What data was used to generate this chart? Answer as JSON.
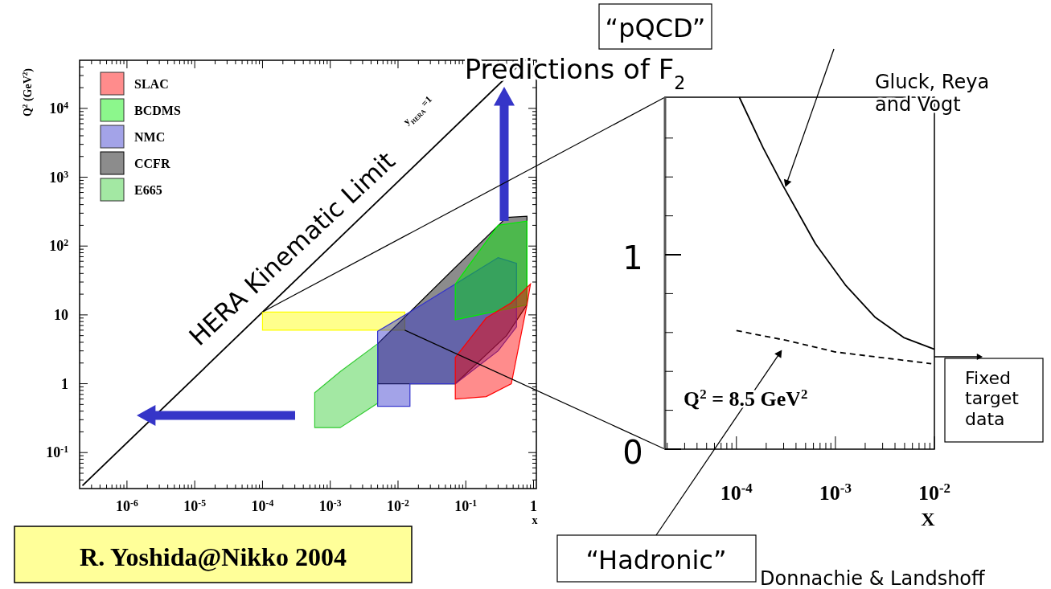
{
  "chart_data": [
    {
      "type": "area",
      "xlabel": "x",
      "ylabel": "Q$^{2}$ (GeV$^{2}$)",
      "log": "xy",
      "legend": "top left",
      "xlim": [
        2e-07,
        1.1
      ],
      "ylim": [
        0.03,
        50000
      ],
      "xticks": [
        {
          "value": 1e-06,
          "label": "10$^{-6}$"
        },
        {
          "value": 1e-05,
          "label": "10$^{-5}$"
        },
        {
          "value": 0.0001,
          "label": "10$^{-4}$"
        },
        {
          "value": 0.001,
          "label": "10$^{-3}$"
        },
        {
          "value": 0.01,
          "label": "10$^{-2}$"
        },
        {
          "value": 0.1,
          "label": "10$^{-1}$"
        },
        1
      ],
      "yticks": [
        {
          "value": 0.1,
          "label": "10$^{-1}$"
        },
        1,
        10,
        {
          "value": 100,
          "label": "10$^{2}$"
        },
        {
          "value": 1000,
          "label": "10$^{3}$"
        },
        {
          "value": 10000,
          "label": "10$^{4}$"
        }
      ],
      "annotations": [
        {
          "text": "HERA Kinematic Limit",
          "x": 0.0001,
          "y": 10.7
        },
        "y$_{HERA}$ =1",
        "R. Yoshida@Nikko 2004"
      ],
      "series": [
        {
          "name": "SLAC",
          "color": "#ff0000",
          "x": [
            0.07,
            0.2,
            0.47,
            0.8,
            0.9,
            0.8,
            0.47,
            0.2,
            0.07
          ],
          "values": [
            2.4,
            9,
            15,
            25,
            28,
            14,
            1,
            0.65,
            0.6
          ]
        },
        {
          "name": "BCDMS",
          "color": "#00ee00",
          "x": [
            0.07,
            0.3,
            0.8,
            0.8,
            0.07
          ],
          "values": [
            28,
            200,
            230,
            14,
            8.5
          ]
        },
        {
          "name": "NMC",
          "color": "#3333cc",
          "x": [
            0.005,
            0.015,
            0.07,
            0.3,
            0.56,
            0.56,
            0.3,
            0.07,
            0.015,
            0.015,
            0.005
          ],
          "values": [
            5.8,
            11,
            28,
            68,
            56,
            6.7,
            3,
            1,
            1,
            0.47,
            0.47
          ]
        },
        {
          "name": "CCFR",
          "color": "#000000",
          "x": [
            0.005,
            0.07,
            0.4,
            0.8,
            0.8,
            0.4,
            0.07,
            0.005
          ],
          "values": [
            3.8,
            49,
            260,
            270,
            14,
            5,
            1,
            1
          ]
        },
        {
          "name": "E665",
          "color": "#33cc33",
          "x": [
            0.00059,
            0.0014,
            0.005,
            0.005,
            0.0014,
            0.00059
          ],
          "values": [
            0.74,
            1.5,
            3.8,
            0.52,
            0.23,
            0.23
          ]
        },
        {
          "color": "#ffff00",
          "x": [
            0.0001,
            0.0126,
            0.0126,
            0.0001
          ],
          "values": [
            11,
            11,
            6,
            6
          ]
        },
        {
          "type": "line",
          "color": "#000000",
          "x": [
            2.2e-07,
            0.72
          ],
          "values": [
            0.033,
            50000
          ]
        }
      ]
    },
    {
      "type": "line",
      "title": "Predictions of F$_{2}$",
      "xlabel": "X",
      "log": "x",
      "xlim": [
        1.9e-05,
        0.01
      ],
      "ylim": [
        0,
        1.81
      ],
      "xticks": [
        {
          "value": 0.0001,
          "label": "10$^{-4}$"
        },
        {
          "value": 0.001,
          "label": "10$^{-3}$"
        },
        {
          "value": 0.01,
          "label": "10$^{-2}$"
        }
      ],
      "yticks": [
        0,
        {
          "value": 0.2,
          "label": null
        },
        {
          "value": 0.4,
          "label": null
        },
        {
          "value": 0.6,
          "label": null
        },
        {
          "value": 0.8,
          "label": null
        },
        1,
        {
          "value": 1.2,
          "label": null
        },
        {
          "value": 1.4,
          "label": null
        },
        {
          "value": 1.6,
          "label": null
        }
      ],
      "annotations": [
        "Q$^{2}$ = 8.5 GeV$^{2}$",
        "Gluck, Reya and Vogt",
        "Donnachie & Landshoff",
        "Fixed target data"
      ],
      "series": [
        {
          "name": "“pQCD”",
          "color": "#000000",
          "line_style": "solid",
          "x": [
            0.000107,
            0.000186,
            0.000295,
            0.00063,
            0.00126,
            0.0025,
            0.0049,
            0.01
          ],
          "values": [
            1.81,
            1.55,
            1.356,
            1.056,
            0.845,
            0.68,
            0.574,
            0.514
          ]
        },
        {
          "name": "“Hadronic”",
          "color": "#000000",
          "line_style": "dashed",
          "x": [
            0.0001,
            0.000316,
            0.001,
            0.0093
          ],
          "values": [
            0.61,
            0.56,
            0.5,
            0.44
          ]
        }
      ]
    }
  ]
}
